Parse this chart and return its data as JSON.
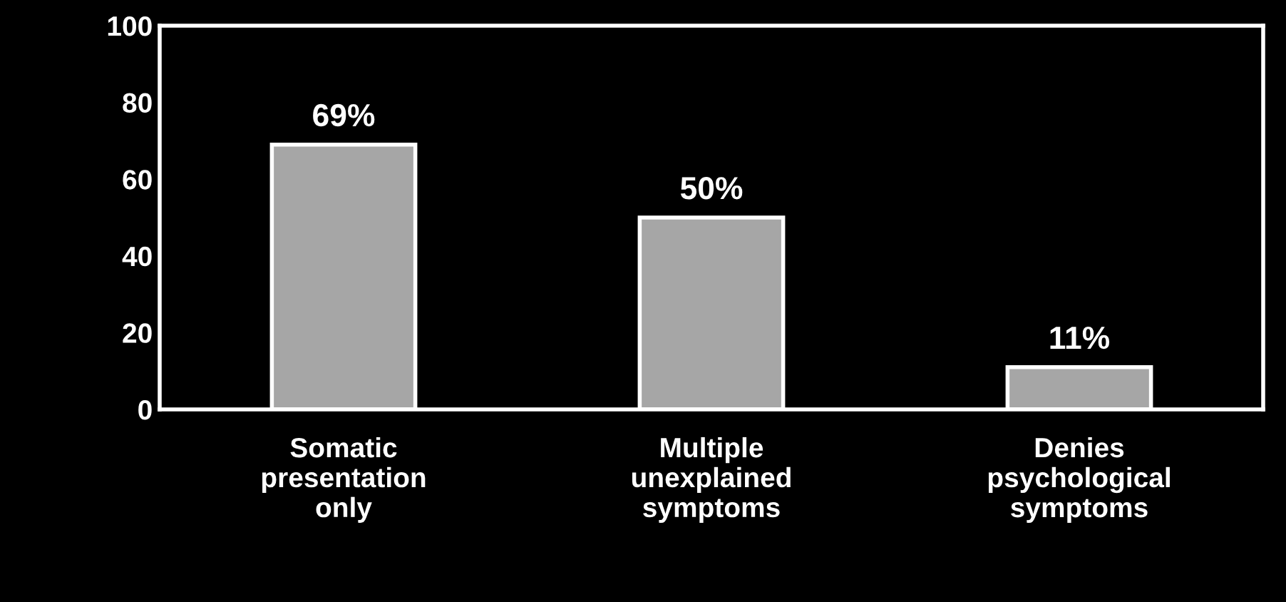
{
  "chart_data": {
    "type": "bar",
    "categories": [
      "Somatic\npresentation\nonly",
      "Multiple\nunexplained\nsymptoms",
      "Denies\npsychological\nsymptoms"
    ],
    "values": [
      69,
      50,
      11
    ],
    "value_labels": [
      "69%",
      "50%",
      "11%"
    ],
    "color": "#a6a6a6",
    "ylim": [
      0,
      100
    ],
    "yticks": [
      0,
      20,
      40,
      60,
      80,
      100
    ],
    "grid": false,
    "legend": false
  }
}
